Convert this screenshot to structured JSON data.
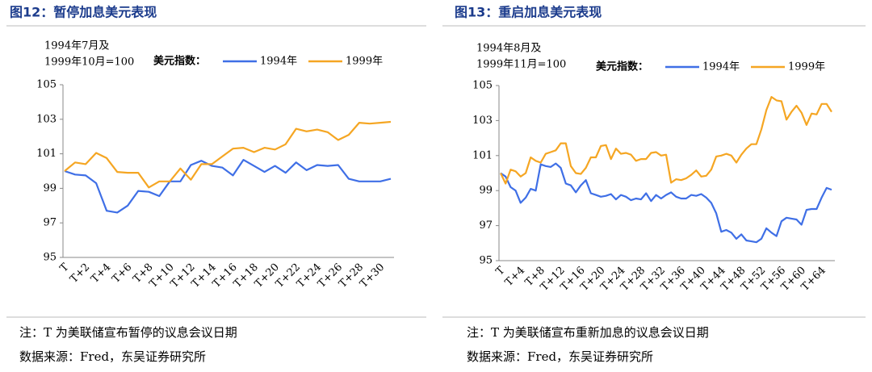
{
  "chart_data": [
    {
      "type": "line",
      "title": "图12：暂停加息美元表现",
      "y_axis_label": [
        "1994年7月及",
        "1999年10月=100"
      ],
      "legend_title": "美元指数：",
      "categories": [
        "T",
        null,
        "T+2",
        null,
        "T+4",
        null,
        "T+6",
        null,
        "T+8",
        null,
        "T+10",
        null,
        "T+12",
        null,
        "T+14",
        null,
        "T+16",
        null,
        "T+18",
        null,
        "T+20",
        null,
        "T+22",
        null,
        "T+24",
        null,
        "T+26",
        null,
        "T+28",
        null,
        "T+30",
        null
      ],
      "series": [
        {
          "name": "1994年",
          "color": "#3f6fe6",
          "values": [
            100,
            99.8,
            99.75,
            99.3,
            97.7,
            97.6,
            98.0,
            98.85,
            98.8,
            98.55,
            99.4,
            99.4,
            100.35,
            100.6,
            100.3,
            100.2,
            99.75,
            100.65,
            100.3,
            99.95,
            100.3,
            99.9,
            100.5,
            100.05,
            100.35,
            100.3,
            100.35,
            99.55,
            99.4,
            99.4,
            99.4,
            99.55
          ]
        },
        {
          "name": "1999年",
          "color": "#f5a623",
          "values": [
            100,
            100.5,
            100.4,
            101.05,
            100.75,
            99.95,
            99.9,
            99.9,
            99.05,
            99.4,
            99.4,
            100.15,
            99.5,
            100.4,
            100.4,
            100.85,
            101.3,
            101.35,
            101.1,
            101.35,
            101.25,
            101.55,
            102.45,
            102.3,
            102.4,
            102.25,
            101.8,
            102.1,
            102.8,
            102.75,
            102.8,
            102.85
          ]
        }
      ],
      "ylim": [
        95,
        105
      ],
      "yticks": [
        95,
        97,
        99,
        101,
        103,
        105
      ],
      "notes": [
        "注：T 为美联储宣布暂停的议息会议日期",
        "数据来源：Fred，东吴证券研究所"
      ]
    },
    {
      "type": "line",
      "title": "图13：重启加息美元表现",
      "y_axis_label": [
        "1994年8月及",
        "1999年11月=100"
      ],
      "legend_title": "美元指数：",
      "categories": [
        "T",
        null,
        null,
        null,
        "T+4",
        null,
        null,
        null,
        "T+8",
        null,
        null,
        null,
        "T+12",
        null,
        null,
        null,
        "T+16",
        null,
        null,
        null,
        "T+20",
        null,
        null,
        null,
        "T+24",
        null,
        null,
        null,
        "T+28",
        null,
        null,
        null,
        "T+32",
        null,
        null,
        null,
        "T+36",
        null,
        null,
        null,
        "T+40",
        null,
        null,
        null,
        "T+44",
        null,
        null,
        null,
        "T+48",
        null,
        null,
        null,
        "T+52",
        null,
        null,
        null,
        "T+56",
        null,
        null,
        null,
        "T+60",
        null,
        null,
        null,
        "T+64",
        null,
        null
      ],
      "series": [
        {
          "name": "1994年",
          "color": "#3f6fe6",
          "values": [
            100,
            99.8,
            99.2,
            99.0,
            98.3,
            98.6,
            99.1,
            99.0,
            100.5,
            100.4,
            100.35,
            100.55,
            100.3,
            99.4,
            99.3,
            98.9,
            99.3,
            99.6,
            98.85,
            98.75,
            98.65,
            98.7,
            98.8,
            98.5,
            98.75,
            98.65,
            98.45,
            98.55,
            98.5,
            98.85,
            98.4,
            98.75,
            98.55,
            98.75,
            98.9,
            98.65,
            98.55,
            98.55,
            98.75,
            98.7,
            98.8,
            98.6,
            98.3,
            97.7,
            96.65,
            96.75,
            96.6,
            96.25,
            96.5,
            96.15,
            96.1,
            96.05,
            96.25,
            96.85,
            96.6,
            96.4,
            97.25,
            97.45,
            97.4,
            97.35,
            97.05,
            97.9,
            97.95,
            97.95,
            98.6,
            99.15,
            99.05
          ]
        },
        {
          "name": "1999年",
          "color": "#f5a623",
          "values": [
            100,
            99.4,
            100.2,
            100.1,
            99.8,
            100.0,
            100.9,
            100.7,
            100.6,
            101.1,
            101.2,
            101.3,
            101.7,
            101.7,
            100.4,
            100.0,
            99.95,
            100.3,
            100.9,
            100.9,
            101.55,
            101.6,
            100.8,
            101.4,
            101.1,
            101.15,
            101.05,
            100.7,
            100.8,
            100.8,
            101.15,
            101.2,
            101.0,
            101.05,
            99.45,
            99.65,
            99.6,
            99.7,
            99.9,
            100.15,
            99.8,
            99.85,
            100.2,
            100.95,
            101.0,
            101.1,
            101.0,
            100.6,
            101.05,
            101.4,
            101.65,
            101.65,
            102.5,
            103.6,
            104.35,
            104.15,
            104.1,
            103.05,
            103.5,
            103.85,
            103.45,
            102.75,
            103.4,
            103.35,
            103.95,
            103.95,
            103.5
          ]
        }
      ],
      "ylim": [
        95,
        105
      ],
      "yticks": [
        95,
        97,
        99,
        101,
        103,
        105
      ],
      "notes": [
        "注：T 为美联储宣布重新加息的议息会议日期",
        "数据来源：Fred，东吴证券研究所"
      ]
    }
  ]
}
